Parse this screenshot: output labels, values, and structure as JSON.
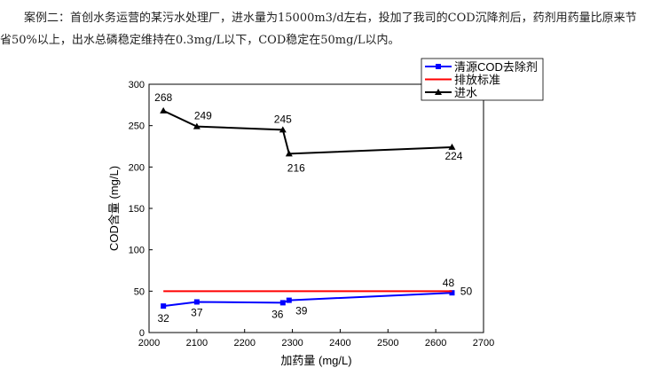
{
  "intro_text": "案例二：首创水务运营的某污水处理厂，进水量为15000m3/d左右，投加了我司的COD沉降剂后，药剂用药量比原来节省50%以上，出水总磷稳定维持在0.3mg/L以下，COD稳定在50mg/L以内。",
  "chart_data": {
    "type": "line",
    "title": "",
    "xlabel": "加药量 (mg/L)",
    "ylabel": "COD含量 (mg/L)",
    "xlim": [
      2000,
      2700
    ],
    "ylim": [
      0,
      300
    ],
    "xticks": [
      2000,
      2100,
      2200,
      2300,
      2400,
      2500,
      2600,
      2700
    ],
    "yticks": [
      0,
      50,
      100,
      150,
      200,
      250,
      300
    ],
    "grid": false,
    "legend_position": "top-right",
    "series": [
      {
        "name": "清源COD去除剂",
        "color": "#0000ff",
        "marker": "square",
        "x": [
          2030,
          2100,
          2280,
          2293,
          2634
        ],
        "values": [
          32,
          37,
          36,
          39,
          48
        ],
        "labels": [
          "32",
          "37",
          "36",
          "39",
          "48"
        ]
      },
      {
        "name": "排放标准",
        "color": "#ff0000",
        "marker": "none",
        "x": [
          2030,
          2634
        ],
        "values": [
          50,
          50
        ],
        "labels": [
          "",
          "50"
        ]
      },
      {
        "name": "进水",
        "color": "#000000",
        "marker": "triangle",
        "x": [
          2030,
          2100,
          2280,
          2293,
          2634
        ],
        "values": [
          268,
          249,
          245,
          216,
          224
        ],
        "labels": [
          "268",
          "249",
          "245",
          "216",
          "224"
        ]
      }
    ]
  }
}
